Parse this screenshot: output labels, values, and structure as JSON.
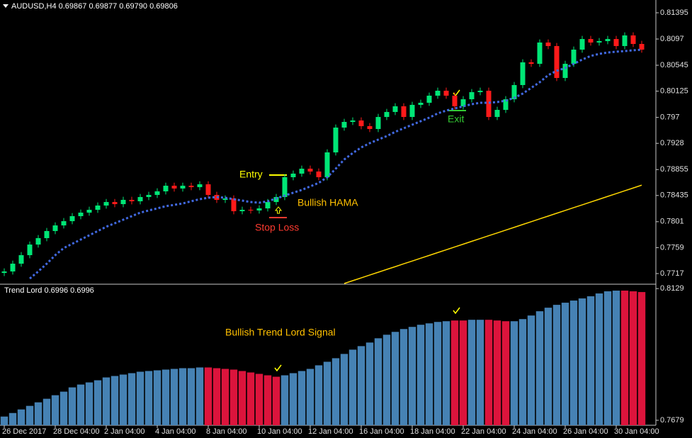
{
  "chart_data": [
    {
      "type": "candlestick",
      "title": "AUDUSD,H4  0.69867 0.69877 0.69790 0.69806",
      "up_color": "#00e676",
      "down_color": "#ff1a1a",
      "open": [
        0.7718,
        0.77204,
        0.7733,
        0.77468,
        0.7764,
        0.77744,
        0.77859,
        0.7795,
        0.78019,
        0.781,
        0.78157,
        0.78203,
        0.78272,
        0.78329,
        0.78295,
        0.78364,
        0.78341,
        0.7841,
        0.78444,
        0.78502,
        0.78593,
        0.78548,
        0.78593,
        0.7857,
        0.78616,
        0.78444,
        0.78364,
        0.78387,
        0.7818,
        0.78203,
        0.78192,
        0.78226,
        0.78329,
        0.7841,
        0.78731,
        0.78789,
        0.78869,
        0.78823,
        0.78731,
        0.79133,
        0.79535,
        0.79627,
        0.7965,
        0.79558,
        0.79512,
        0.79707,
        0.79788,
        0.7988,
        0.79707,
        0.79903,
        0.79937,
        0.80052,
        0.80132,
        0.80052,
        0.7988,
        0.79994,
        0.80109,
        0.80132,
        0.79707,
        0.79822,
        0.79994,
        0.80224,
        0.80592,
        0.80568,
        0.80913,
        0.80856,
        0.80339,
        0.80568,
        0.80798,
        0.8097,
        0.80913,
        0.80936,
        0.8097,
        0.80856,
        0.81028,
        0.8089
      ],
      "high": [
        0.77254,
        0.7738,
        0.77518,
        0.7769,
        0.77794,
        0.77909,
        0.78,
        0.78069,
        0.7815,
        0.78207,
        0.78253,
        0.78322,
        0.78379,
        0.78379,
        0.78414,
        0.78414,
        0.7846,
        0.78494,
        0.78552,
        0.78643,
        0.78643,
        0.78643,
        0.78643,
        0.78666,
        0.78666,
        0.78494,
        0.78437,
        0.78437,
        0.78253,
        0.78253,
        0.78276,
        0.78379,
        0.7846,
        0.78781,
        0.78839,
        0.78919,
        0.78919,
        0.78873,
        0.79183,
        0.79585,
        0.79677,
        0.797,
        0.797,
        0.79608,
        0.79757,
        0.79838,
        0.7993,
        0.7993,
        0.79953,
        0.79987,
        0.80102,
        0.80182,
        0.80182,
        0.80102,
        0.80044,
        0.80159,
        0.80182,
        0.80182,
        0.79872,
        0.80044,
        0.80274,
        0.80642,
        0.80642,
        0.80963,
        0.80963,
        0.80906,
        0.80618,
        0.80848,
        0.8102,
        0.8102,
        0.80986,
        0.8102,
        0.8102,
        0.81078,
        0.81078,
        0.8094
      ],
      "low": [
        0.7713,
        0.77154,
        0.7728,
        0.77418,
        0.7759,
        0.77694,
        0.77809,
        0.779,
        0.77969,
        0.7805,
        0.78107,
        0.78153,
        0.78222,
        0.78245,
        0.78245,
        0.78291,
        0.78291,
        0.7836,
        0.78394,
        0.78452,
        0.78498,
        0.78498,
        0.7852,
        0.7852,
        0.78394,
        0.78314,
        0.78314,
        0.7813,
        0.7813,
        0.78142,
        0.78142,
        0.78176,
        0.78279,
        0.7836,
        0.78681,
        0.78739,
        0.78773,
        0.78681,
        0.78681,
        0.79083,
        0.79485,
        0.79577,
        0.79508,
        0.79462,
        0.79462,
        0.79657,
        0.79738,
        0.79657,
        0.79657,
        0.79853,
        0.79887,
        0.80002,
        0.80002,
        0.7983,
        0.7983,
        0.79944,
        0.80059,
        0.79657,
        0.79657,
        0.79772,
        0.79944,
        0.80174,
        0.80518,
        0.80518,
        0.80806,
        0.80289,
        0.80289,
        0.80518,
        0.80748,
        0.80863,
        0.80863,
        0.80886,
        0.80806,
        0.80806,
        0.8084,
        0.80748
      ],
      "close": [
        0.77204,
        0.7733,
        0.77468,
        0.7764,
        0.77744,
        0.77859,
        0.7795,
        0.78019,
        0.781,
        0.78157,
        0.78203,
        0.78272,
        0.78329,
        0.78295,
        0.78364,
        0.78341,
        0.7841,
        0.78444,
        0.78502,
        0.78593,
        0.78548,
        0.78593,
        0.7857,
        0.78616,
        0.78444,
        0.78364,
        0.78387,
        0.7818,
        0.78203,
        0.78192,
        0.78226,
        0.78329,
        0.7841,
        0.78731,
        0.78789,
        0.78869,
        0.78823,
        0.78731,
        0.79133,
        0.79535,
        0.79627,
        0.7965,
        0.79558,
        0.79512,
        0.79707,
        0.79788,
        0.7988,
        0.79707,
        0.79903,
        0.79937,
        0.80052,
        0.80132,
        0.80052,
        0.7988,
        0.79994,
        0.80109,
        0.80132,
        0.79707,
        0.79822,
        0.79994,
        0.80224,
        0.80592,
        0.80568,
        0.80913,
        0.80856,
        0.80339,
        0.80568,
        0.80798,
        0.8097,
        0.80913,
        0.80936,
        0.8097,
        0.80856,
        0.81028,
        0.8089,
        0.80798
      ],
      "lines": [
        {
          "color": "#4169e1",
          "style": "dashed",
          "values": [
            null,
            null,
            null,
            0.77089,
            0.77204,
            0.7733,
            0.77468,
            0.77583,
            0.77652,
            0.77721,
            0.7779,
            0.77859,
            0.77928,
            0.77985,
            0.78042,
            0.781,
            0.78157,
            0.78192,
            0.78226,
            0.78261,
            0.78283,
            0.78306,
            0.78341,
            0.78375,
            0.78398,
            0.7841,
            0.78398,
            0.78375,
            0.78352,
            0.78329,
            0.78318,
            0.78341,
            0.78387,
            0.78433,
            0.78479,
            0.78525,
            0.78582,
            0.78639,
            0.78731,
            0.78869,
            0.79018,
            0.79122,
            0.79213,
            0.79282,
            0.7934,
            0.79397,
            0.79466,
            0.79524,
            0.79581,
            0.79638,
            0.79696,
            0.79765,
            0.79811,
            0.79845,
            0.7988,
            0.79914,
            0.79937,
            0.79937,
            0.79949,
            0.79971,
            0.80017,
            0.80086,
            0.80178,
            0.8027,
            0.80385,
            0.80454,
            0.805,
            0.80568,
            0.80637,
            0.80695,
            0.80729,
            0.80752,
            0.80764,
            0.80775,
            0.80787,
            0.80798
          ]
        },
        {
          "color": "#ffd700",
          "style": "solid",
          "values": [
            null,
            null,
            null,
            null,
            null,
            null,
            null,
            null,
            null,
            null,
            null,
            null,
            null,
            null,
            null,
            null,
            null,
            null,
            null,
            null,
            null,
            null,
            null,
            null,
            null,
            null,
            null,
            null,
            null,
            null,
            null,
            null,
            null,
            null,
            null,
            null,
            null,
            null,
            null,
            null,
            0.77009,
            0.77055,
            0.771,
            0.77146,
            0.77191,
            0.77237,
            0.77282,
            0.77328,
            0.77373,
            0.77419,
            0.77464,
            0.7751,
            0.77555,
            0.77601,
            0.77646,
            0.77692,
            0.77737,
            0.77783,
            0.77828,
            0.77874,
            0.77919,
            0.77965,
            0.7801,
            0.78056,
            0.78101,
            0.78147,
            0.78192,
            0.78238,
            0.78283,
            0.78329,
            0.78374,
            0.7842,
            0.78465,
            0.78511,
            0.78556,
            0.78602
          ]
        }
      ],
      "annotations": [
        {
          "text": "Entry",
          "color": "#ffff00"
        },
        {
          "text": "Bullish HAMA",
          "color": "#ffc000"
        },
        {
          "text": "Stop Loss",
          "color": "#ff3b30"
        },
        {
          "text": "Exit",
          "color": "#33cc33"
        }
      ],
      "ylim": [
        0.77009,
        0.81602
      ],
      "yticks": [
        0.81395,
        0.8097,
        0.80545,
        0.80125,
        0.797,
        0.7928,
        0.78855,
        0.78435,
        0.7801,
        0.7759,
        0.7717
      ]
    },
    {
      "type": "bar",
      "title": "Trend Lord 0.6996 0.6996",
      "categories": [
        "26 Dec 2017",
        null,
        null,
        null,
        null,
        null,
        "28 Dec 04:00",
        null,
        null,
        null,
        null,
        null,
        "2 Jan 04:00",
        null,
        null,
        null,
        null,
        null,
        "4 Jan 04:00",
        null,
        null,
        null,
        null,
        null,
        "8 Jan 04:00",
        null,
        null,
        null,
        null,
        null,
        "10 Jan 04:00",
        null,
        null,
        null,
        null,
        null,
        "12 Jan 04:00",
        null,
        null,
        null,
        null,
        null,
        "16 Jan 04:00",
        null,
        null,
        null,
        null,
        null,
        "18 Jan 04:00",
        null,
        null,
        null,
        null,
        null,
        "22 Jan 04:00",
        null,
        null,
        null,
        null,
        null,
        "24 Jan 04:00",
        null,
        null,
        null,
        null,
        null,
        "26 Jan 04:00",
        null,
        null,
        null,
        null,
        null,
        "30 Jan 04:00",
        null,
        null,
        null
      ],
      "values": [
        0.76917,
        0.77038,
        0.7716,
        0.77282,
        0.77403,
        0.77525,
        0.77646,
        0.77768,
        0.77914,
        0.78011,
        0.78084,
        0.78157,
        0.78254,
        0.78303,
        0.78352,
        0.784,
        0.78449,
        0.78473,
        0.78497,
        0.78522,
        0.78546,
        0.7857,
        0.7857,
        0.78595,
        0.78595,
        0.7857,
        0.78546,
        0.78522,
        0.78473,
        0.78424,
        0.78376,
        0.78327,
        0.78278,
        0.78327,
        0.784,
        0.78473,
        0.78546,
        0.78668,
        0.78789,
        0.78911,
        0.79057,
        0.79203,
        0.79324,
        0.79446,
        0.79592,
        0.79713,
        0.79811,
        0.79908,
        0.79981,
        0.80054,
        0.80102,
        0.80151,
        0.80175,
        0.802,
        0.802,
        0.80224,
        0.80224,
        0.80224,
        0.802,
        0.80175,
        0.80175,
        0.80248,
        0.8037,
        0.80516,
        0.80637,
        0.80735,
        0.80808,
        0.80881,
        0.80954,
        0.81027,
        0.81124,
        0.81197,
        0.81221,
        0.81221,
        0.81197,
        0.81172
      ],
      "bar_colors": [
        "#4682b4",
        "#4682b4",
        "#4682b4",
        "#4682b4",
        "#4682b4",
        "#4682b4",
        "#4682b4",
        "#4682b4",
        "#4682b4",
        "#4682b4",
        "#4682b4",
        "#4682b4",
        "#4682b4",
        "#4682b4",
        "#4682b4",
        "#4682b4",
        "#4682b4",
        "#4682b4",
        "#4682b4",
        "#4682b4",
        "#4682b4",
        "#4682b4",
        "#4682b4",
        "#4682b4",
        "#dc143c",
        "#dc143c",
        "#dc143c",
        "#dc143c",
        "#dc143c",
        "#dc143c",
        "#dc143c",
        "#dc143c",
        "#dc143c",
        "#4682b4",
        "#4682b4",
        "#4682b4",
        "#4682b4",
        "#4682b4",
        "#4682b4",
        "#4682b4",
        "#4682b4",
        "#4682b4",
        "#4682b4",
        "#4682b4",
        "#4682b4",
        "#4682b4",
        "#4682b4",
        "#4682b4",
        "#4682b4",
        "#4682b4",
        "#4682b4",
        "#4682b4",
        "#4682b4",
        "#dc143c",
        "#dc143c",
        "#4682b4",
        "#4682b4",
        "#dc143c",
        "#dc143c",
        "#dc143c",
        "#4682b4",
        "#4682b4",
        "#4682b4",
        "#4682b4",
        "#4682b4",
        "#4682b4",
        "#4682b4",
        "#4682b4",
        "#4682b4",
        "#4682b4",
        "#4682b4",
        "#4682b4",
        "#4682b4",
        "#dc143c",
        "#dc143c",
        "#dc143c"
      ],
      "annotations": [
        {
          "text": "Bullish Trend Lord Signal",
          "color": "#ffc000"
        }
      ],
      "ylim": [
        0.7662,
        0.8144
      ],
      "yticks": [
        0.8129,
        0.7679
      ]
    }
  ]
}
